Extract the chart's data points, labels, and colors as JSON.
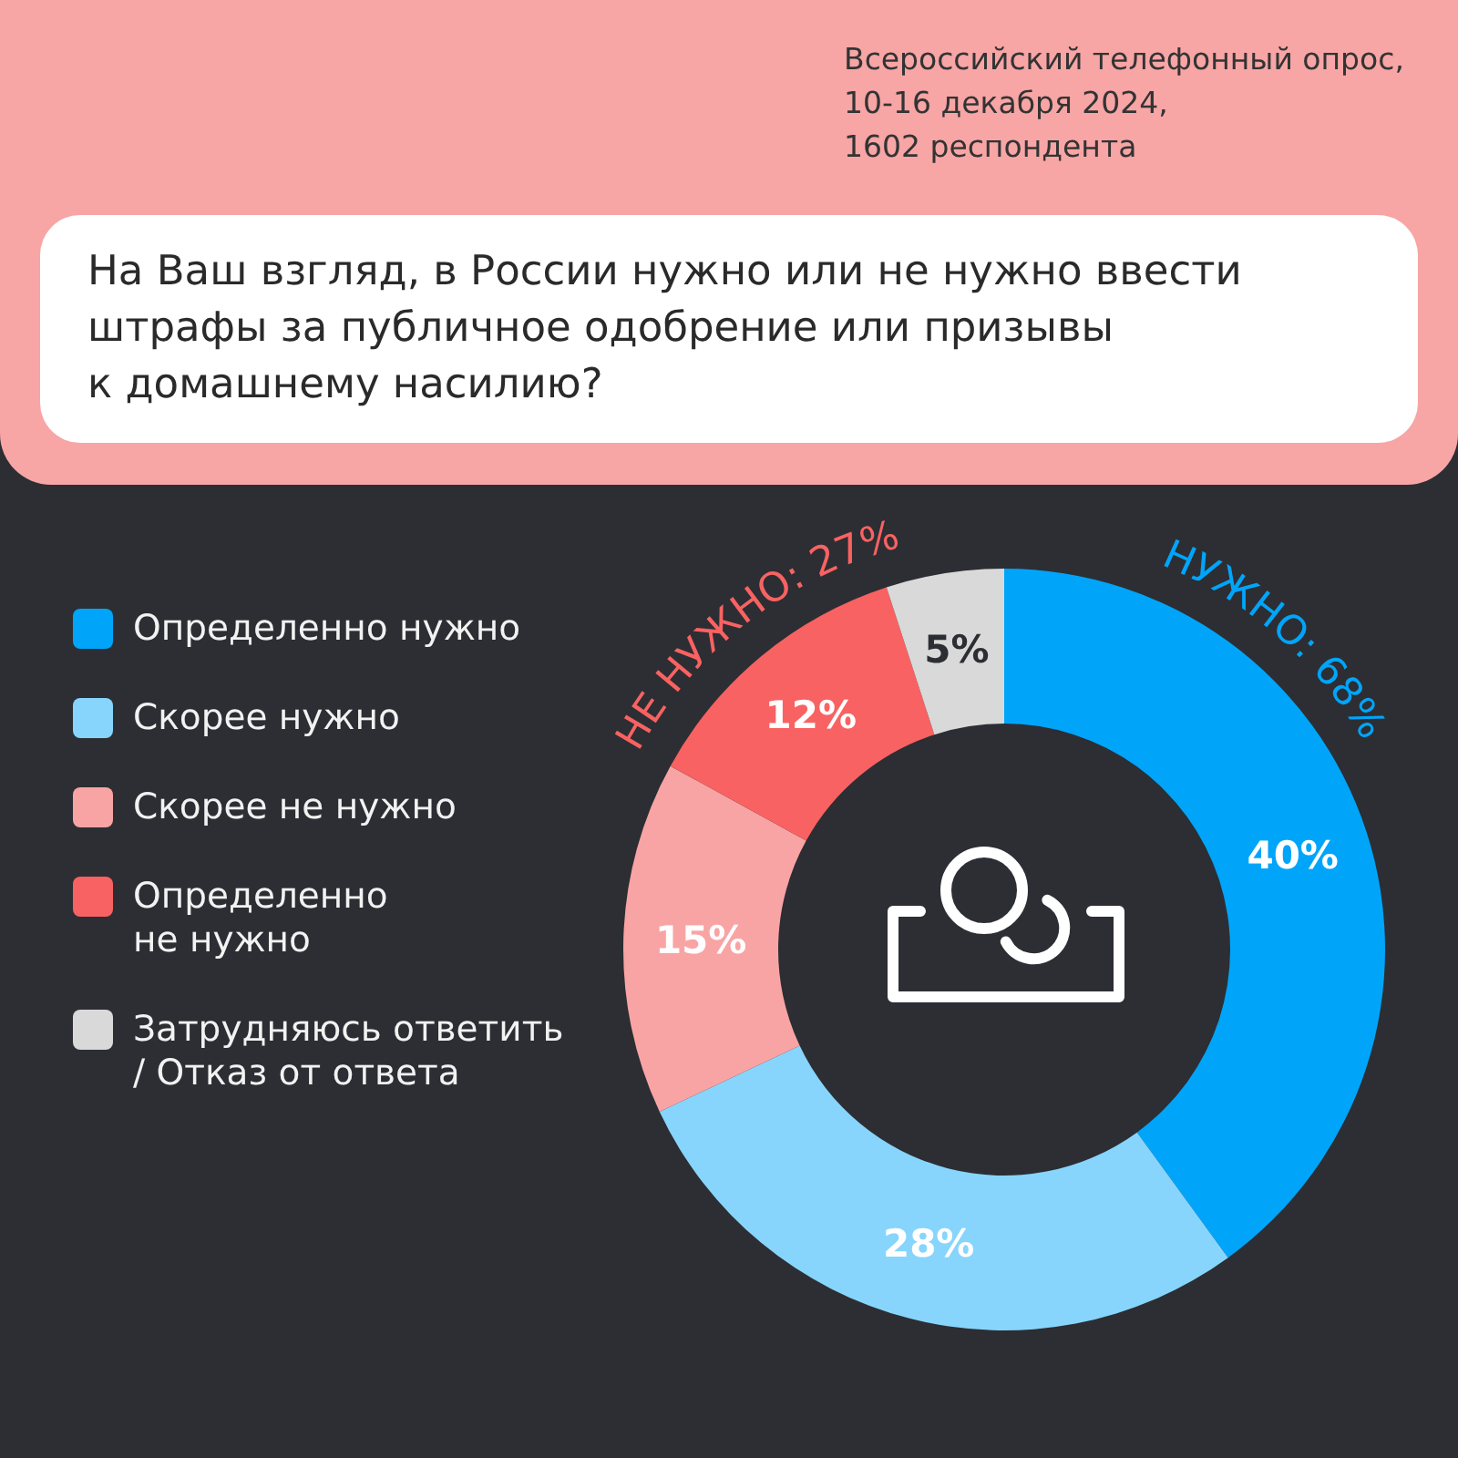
{
  "chart_data": {
    "type": "donut",
    "title": "На Ваш взгляд, в России нужно или не нужно ввести\nштрафы за публичное одобрение или призывы\nк домашнему насилию?",
    "categories": [
      "Определенно нужно",
      "Скорее нужно",
      "Скорее не нужно",
      "Определенно\nне нужно",
      "Затрудняюсь ответить\n/ Отказ от ответа"
    ],
    "values": [
      40,
      28,
      15,
      12,
      5
    ],
    "colors": [
      "#00a5fa",
      "#87d5fd",
      "#f9a4a4",
      "#f96262",
      "#d9d9d9"
    ],
    "value_labels": [
      "40%",
      "28%",
      "15%",
      "12%",
      "5%"
    ],
    "legend": "left",
    "annotations": [
      "Всероссийский телефонный опрос,\n10-16 декабря 2024,\n1602 респондента",
      "НЕ НУЖНО: 27%",
      "НУЖНО: 68%"
    ]
  }
}
